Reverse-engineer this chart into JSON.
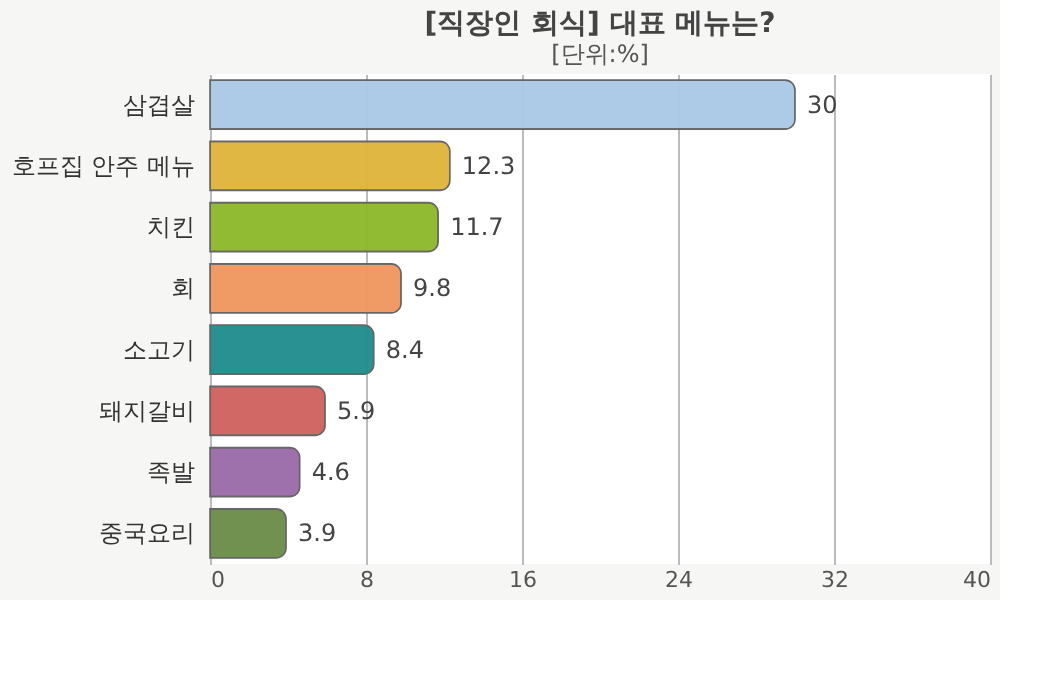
{
  "chart_data": {
    "type": "bar",
    "orientation": "horizontal",
    "title": "[직장인 회식] 대표 메뉴는?",
    "subtitle": "[단위:%]",
    "categories": [
      "삼겹살",
      "호프집 안주 메뉴",
      "치킨",
      "회",
      "소고기",
      "돼지갈비",
      "족발",
      "중국요리"
    ],
    "values": [
      30,
      12.3,
      11.7,
      9.8,
      8.4,
      5.9,
      4.6,
      3.9
    ],
    "colors": [
      "#a9c8e6",
      "#e0b43a",
      "#8cb828",
      "#f0965e",
      "#1e8c8c",
      "#d0605e",
      "#9a6aa8",
      "#6a8c48"
    ],
    "xlim": [
      0,
      40
    ],
    "xticks": [
      0,
      8,
      16,
      24,
      32,
      40
    ],
    "grid": "x",
    "data_labels": true
  }
}
